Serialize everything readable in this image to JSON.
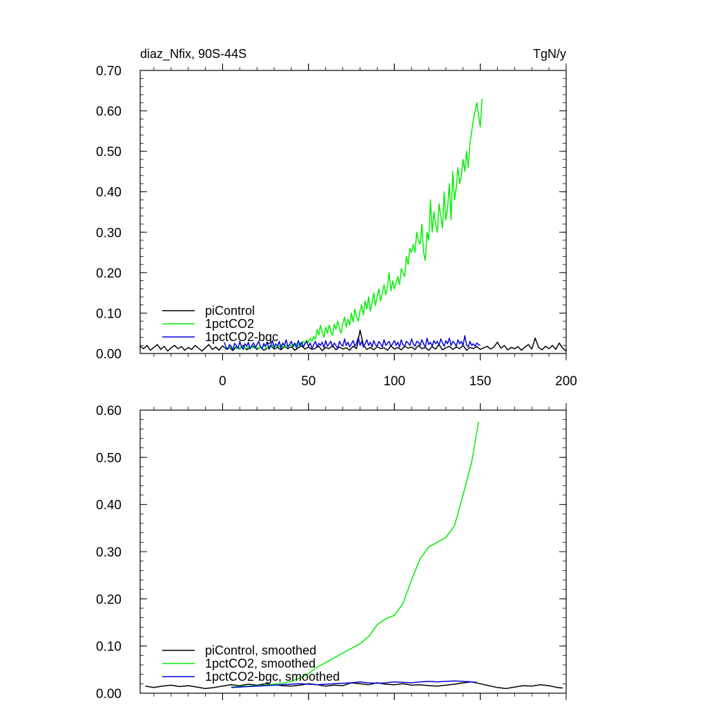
{
  "chart_data": [
    {
      "type": "line",
      "title_left": "diaz_Nfix, 90S-44S",
      "title_right": "TgN/y",
      "xlim": [
        -48,
        200
      ],
      "ylim": [
        0,
        0.7
      ],
      "xticks": [
        0,
        50,
        100,
        150,
        200
      ],
      "xtick_labels": [
        "0",
        "50",
        "100",
        "150",
        "200"
      ],
      "yticks": [
        0,
        0.1,
        0.2,
        0.3,
        0.4,
        0.5,
        0.6,
        0.7
      ],
      "ytick_labels": [
        "0.00",
        "0.10",
        "0.20",
        "0.30",
        "0.40",
        "0.50",
        "0.60",
        "0.70"
      ],
      "legend": {
        "placement": "bottom-left"
      },
      "series": [
        {
          "name": "piControl",
          "color": "#000000",
          "x_start": -48,
          "x_step": 2,
          "values": [
            0.018,
            0.012,
            0.02,
            0.008,
            0.015,
            0.022,
            0.01,
            0.018,
            0.006,
            0.014,
            0.02,
            0.012,
            0.017,
            0.008,
            0.015,
            0.01,
            0.02,
            0.013,
            0.006,
            0.014,
            0.022,
            0.01,
            0.016,
            0.008,
            0.019,
            0.011,
            0.015,
            0.007,
            0.017,
            0.012,
            0.02,
            0.009,
            0.014,
            0.018,
            0.01,
            0.016,
            0.008,
            0.013,
            0.02,
            0.011,
            0.015,
            0.009,
            0.018,
            0.012,
            0.017,
            0.008,
            0.014,
            0.019,
            0.011,
            0.016,
            0.01,
            0.013,
            0.018,
            0.007,
            0.015,
            0.012,
            0.02,
            0.009,
            0.016,
            0.011,
            0.014,
            0.008,
            0.018,
            0.012,
            0.058,
            0.02,
            0.01,
            0.015,
            0.009,
            0.017,
            0.012,
            0.014,
            0.008,
            0.019,
            0.011,
            0.015,
            0.009,
            0.018,
            0.013,
            0.016,
            0.01,
            0.02,
            0.012,
            0.015,
            0.008,
            0.017,
            0.011,
            0.022,
            0.009,
            0.014,
            0.018,
            0.01,
            0.016,
            0.012,
            0.02,
            0.008,
            0.015,
            0.012,
            0.017,
            0.01,
            0.014,
            0.018,
            0.011,
            0.016,
            0.028,
            0.013,
            0.02,
            0.009,
            0.015,
            0.012,
            0.017,
            0.008,
            0.016,
            0.022,
            0.011,
            0.038,
            0.015,
            0.009,
            0.018,
            0.012,
            0.02,
            0.01,
            0.026,
            0.013,
            0.006
          ]
        },
        {
          "name": "1pctCO2",
          "color": "#00ee00",
          "x_start": 1,
          "x_step": 1,
          "values": [
            0.012,
            0.015,
            0.01,
            0.018,
            0.013,
            0.011,
            0.016,
            0.012,
            0.014,
            0.01,
            0.017,
            0.013,
            0.015,
            0.012,
            0.018,
            0.014,
            0.016,
            0.013,
            0.019,
            0.015,
            0.012,
            0.017,
            0.014,
            0.02,
            0.016,
            0.013,
            0.018,
            0.015,
            0.021,
            0.017,
            0.014,
            0.019,
            0.016,
            0.022,
            0.018,
            0.015,
            0.02,
            0.017,
            0.023,
            0.019,
            0.016,
            0.021,
            0.024,
            0.018,
            0.026,
            0.022,
            0.03,
            0.025,
            0.034,
            0.028,
            0.038,
            0.03,
            0.042,
            0.035,
            0.06,
            0.045,
            0.07,
            0.052,
            0.04,
            0.065,
            0.05,
            0.07,
            0.055,
            0.045,
            0.072,
            0.06,
            0.08,
            0.062,
            0.05,
            0.075,
            0.09,
            0.065,
            0.085,
            0.07,
            0.1,
            0.078,
            0.11,
            0.09,
            0.08,
            0.105,
            0.12,
            0.095,
            0.13,
            0.11,
            0.14,
            0.105,
            0.125,
            0.15,
            0.118,
            0.14,
            0.16,
            0.13,
            0.15,
            0.17,
            0.145,
            0.165,
            0.2,
            0.155,
            0.18,
            0.16,
            0.175,
            0.19,
            0.17,
            0.21,
            0.2,
            0.19,
            0.24,
            0.22,
            0.26,
            0.25,
            0.27,
            0.25,
            0.3,
            0.28,
            0.27,
            0.32,
            0.25,
            0.23,
            0.3,
            0.28,
            0.38,
            0.3,
            0.35,
            0.32,
            0.3,
            0.37,
            0.34,
            0.31,
            0.4,
            0.33,
            0.36,
            0.42,
            0.33,
            0.45,
            0.38,
            0.41,
            0.46,
            0.42,
            0.44,
            0.48,
            0.45,
            0.5,
            0.46,
            0.52,
            0.55,
            0.58,
            0.6,
            0.62,
            0.59,
            0.56,
            0.63
          ]
        },
        {
          "name": "1pctCO2-bgc",
          "color": "#0000dd",
          "x_start": 1,
          "x_step": 1,
          "values": [
            0.028,
            0.015,
            0.01,
            0.022,
            0.018,
            0.008,
            0.025,
            0.02,
            0.012,
            0.03,
            0.016,
            0.01,
            0.024,
            0.018,
            0.028,
            0.012,
            0.02,
            0.026,
            0.014,
            0.022,
            0.03,
            0.016,
            0.012,
            0.025,
            0.018,
            0.028,
            0.01,
            0.02,
            0.032,
            0.015,
            0.024,
            0.018,
            0.03,
            0.012,
            0.026,
            0.02,
            0.034,
            0.016,
            0.022,
            0.03,
            0.018,
            0.026,
            0.014,
            0.032,
            0.02,
            0.028,
            0.016,
            0.024,
            0.03,
            0.018,
            0.026,
            0.012,
            0.022,
            0.03,
            0.016,
            0.025,
            0.02,
            0.028,
            0.014,
            0.032,
            0.018,
            0.024,
            0.03,
            0.016,
            0.026,
            0.02,
            0.012,
            0.03,
            0.022,
            0.018,
            0.036,
            0.02,
            0.028,
            0.016,
            0.024,
            0.032,
            0.018,
            0.026,
            0.04,
            0.02,
            0.03,
            0.016,
            0.024,
            0.034,
            0.02,
            0.028,
            0.016,
            0.032,
            0.022,
            0.018,
            0.03,
            0.024,
            0.016,
            0.034,
            0.02,
            0.026,
            0.03,
            0.018,
            0.024,
            0.032,
            0.02,
            0.028,
            0.016,
            0.034,
            0.022,
            0.018,
            0.03,
            0.026,
            0.02,
            0.036,
            0.024,
            0.018,
            0.03,
            0.028,
            0.02,
            0.034,
            0.024,
            0.016,
            0.038,
            0.022,
            0.028,
            0.018,
            0.032,
            0.024,
            0.03,
            0.02,
            0.036,
            0.026,
            0.018,
            0.032,
            0.024,
            0.038,
            0.02,
            0.03,
            0.026,
            0.018,
            0.034,
            0.024,
            0.03,
            0.02,
            0.044,
            0.022,
            0.016,
            0.03,
            0.02,
            0.024,
            0.018,
            0.026,
            0.022,
            0.02
          ]
        }
      ]
    },
    {
      "type": "line",
      "xlim": [
        -48,
        200
      ],
      "ylim": [
        0,
        0.6
      ],
      "xticks": [
        0,
        50,
        100,
        150,
        200
      ],
      "yticks": [
        0,
        0.1,
        0.2,
        0.3,
        0.4,
        0.5,
        0.6
      ],
      "ytick_labels": [
        "0.00",
        "0.10",
        "0.20",
        "0.30",
        "0.40",
        "0.50",
        "0.60"
      ],
      "legend": {
        "placement": "bottom-left"
      },
      "series": [
        {
          "name": "piControl, smoothed",
          "color": "#000000",
          "points": [
            [
              -45,
              0.015
            ],
            [
              -40,
              0.012
            ],
            [
              -35,
              0.015
            ],
            [
              -30,
              0.017
            ],
            [
              -25,
              0.014
            ],
            [
              -20,
              0.016
            ],
            [
              -15,
              0.013
            ],
            [
              -10,
              0.01
            ],
            [
              -5,
              0.012
            ],
            [
              0,
              0.015
            ],
            [
              5,
              0.018
            ],
            [
              10,
              0.016
            ],
            [
              15,
              0.019
            ],
            [
              20,
              0.017
            ],
            [
              25,
              0.02
            ],
            [
              30,
              0.018
            ],
            [
              35,
              0.016
            ],
            [
              40,
              0.015
            ],
            [
              45,
              0.017
            ],
            [
              50,
              0.02
            ],
            [
              55,
              0.018
            ],
            [
              60,
              0.015
            ],
            [
              65,
              0.017
            ],
            [
              70,
              0.016
            ],
            [
              75,
              0.022
            ],
            [
              80,
              0.02
            ],
            [
              85,
              0.018
            ],
            [
              90,
              0.022
            ],
            [
              95,
              0.019
            ],
            [
              100,
              0.018
            ],
            [
              105,
              0.02
            ],
            [
              110,
              0.017
            ],
            [
              115,
              0.018
            ],
            [
              120,
              0.016
            ],
            [
              125,
              0.015
            ],
            [
              130,
              0.017
            ],
            [
              135,
              0.019
            ],
            [
              140,
              0.022
            ],
            [
              145,
              0.024
            ],
            [
              150,
              0.02
            ],
            [
              155,
              0.016
            ],
            [
              160,
              0.012
            ],
            [
              165,
              0.01
            ],
            [
              170,
              0.013
            ],
            [
              175,
              0.016
            ],
            [
              180,
              0.015
            ],
            [
              185,
              0.018
            ],
            [
              190,
              0.016
            ],
            [
              195,
              0.012
            ],
            [
              198,
              0.011
            ]
          ]
        },
        {
          "name": "1pctCO2, smoothed",
          "color": "#00ee00",
          "points": [
            [
              5,
              0.013
            ],
            [
              10,
              0.014
            ],
            [
              15,
              0.015
            ],
            [
              20,
              0.016
            ],
            [
              25,
              0.017
            ],
            [
              30,
              0.019
            ],
            [
              35,
              0.021
            ],
            [
              40,
              0.025
            ],
            [
              45,
              0.032
            ],
            [
              50,
              0.042
            ],
            [
              55,
              0.055
            ],
            [
              60,
              0.065
            ],
            [
              65,
              0.075
            ],
            [
              70,
              0.085
            ],
            [
              75,
              0.095
            ],
            [
              80,
              0.105
            ],
            [
              85,
              0.12
            ],
            [
              90,
              0.145
            ],
            [
              95,
              0.158
            ],
            [
              100,
              0.165
            ],
            [
              105,
              0.19
            ],
            [
              110,
              0.24
            ],
            [
              115,
              0.285
            ],
            [
              120,
              0.31
            ],
            [
              125,
              0.32
            ],
            [
              130,
              0.33
            ],
            [
              135,
              0.355
            ],
            [
              140,
              0.42
            ],
            [
              145,
              0.49
            ],
            [
              149,
              0.575
            ]
          ]
        },
        {
          "name": "1pctCO2-bgc, smoothed",
          "color": "#0000dd",
          "points": [
            [
              5,
              0.012
            ],
            [
              10,
              0.013
            ],
            [
              15,
              0.014
            ],
            [
              20,
              0.015
            ],
            [
              25,
              0.016
            ],
            [
              30,
              0.017
            ],
            [
              35,
              0.018
            ],
            [
              40,
              0.019
            ],
            [
              45,
              0.02
            ],
            [
              50,
              0.019
            ],
            [
              55,
              0.018
            ],
            [
              60,
              0.019
            ],
            [
              65,
              0.02
            ],
            [
              70,
              0.021
            ],
            [
              75,
              0.022
            ],
            [
              80,
              0.024
            ],
            [
              85,
              0.022
            ],
            [
              90,
              0.021
            ],
            [
              95,
              0.022
            ],
            [
              100,
              0.024
            ],
            [
              105,
              0.023
            ],
            [
              110,
              0.022
            ],
            [
              115,
              0.024
            ],
            [
              120,
              0.025
            ],
            [
              125,
              0.024
            ],
            [
              130,
              0.025
            ],
            [
              135,
              0.026
            ],
            [
              140,
              0.025
            ],
            [
              145,
              0.024
            ],
            [
              148,
              0.023
            ]
          ]
        }
      ]
    }
  ]
}
